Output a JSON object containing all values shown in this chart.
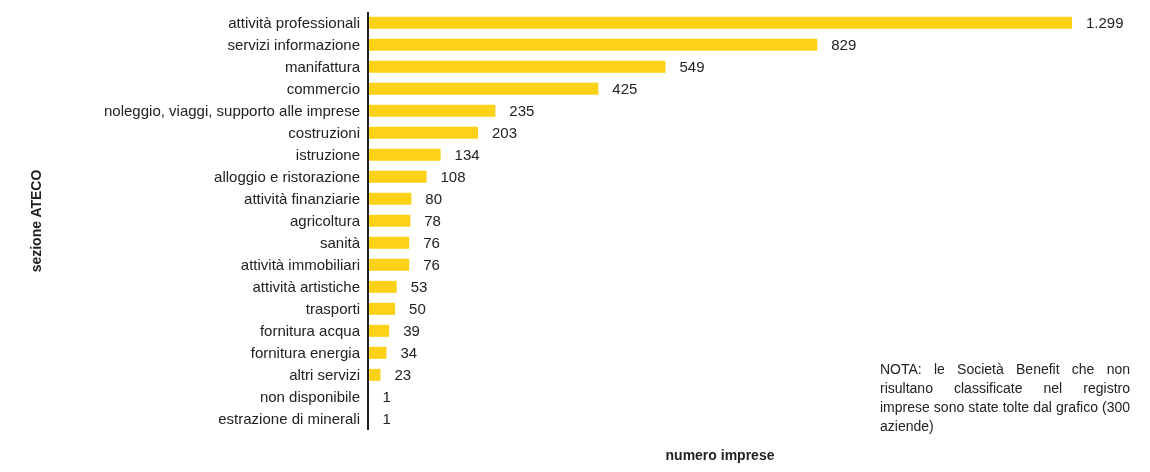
{
  "chart_data": {
    "type": "bar",
    "orientation": "horizontal",
    "xlabel": "numero imprese",
    "ylabel": "sezione ATECO",
    "categories": [
      "attività professionali",
      "servizi informazione",
      "manifattura",
      "commercio",
      "noleggio, viaggi, supporto alle imprese",
      "costruzioni",
      "istruzione",
      "alloggio e ristorazione",
      "attività finanziarie",
      "agricoltura",
      "sanità",
      "attività immobiliari",
      "attività artistiche",
      "trasporti",
      "fornitura acqua",
      "fornitura energia",
      "altri servizi",
      "non disponibile",
      "estrazione di minerali"
    ],
    "values": [
      1299,
      829,
      549,
      425,
      235,
      203,
      134,
      108,
      80,
      78,
      76,
      76,
      53,
      50,
      39,
      34,
      23,
      1,
      1
    ],
    "value_labels": [
      "1.299",
      "829",
      "549",
      "425",
      "235",
      "203",
      "134",
      "108",
      "80",
      "78",
      "76",
      "76",
      "53",
      "50",
      "39",
      "34",
      "23",
      "1",
      "1"
    ],
    "color": "#fcd116",
    "tick_labels": "y",
    "grid": false,
    "legend": false,
    "annotations": [
      "NOTA: le Società Benefit che non risultano classificate nel registro imprese sono state tolte dal grafico (300 aziende)"
    ]
  }
}
